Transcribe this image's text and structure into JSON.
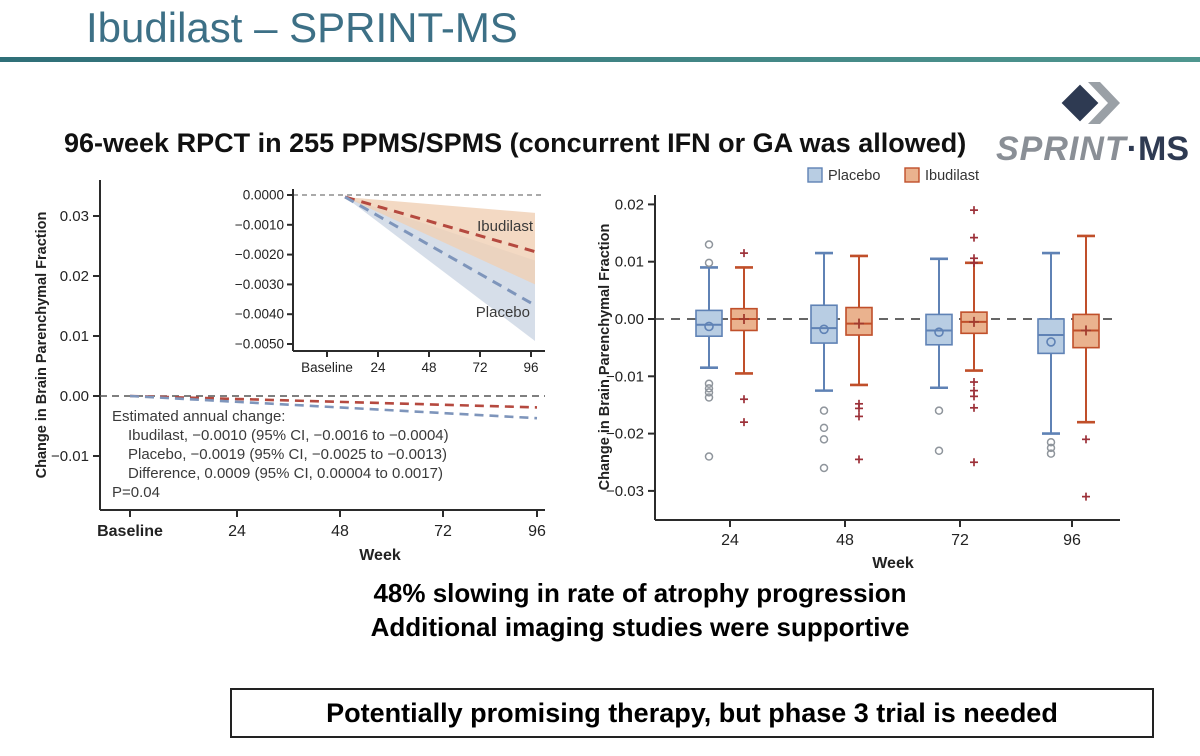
{
  "slide": {
    "title": "Ibudilast – SPRINT-MS",
    "subtitle": "96-week RPCT in 255 PPMS/SPMS (concurrent IFN or GA was allowed)",
    "finding_line1": "48% slowing in rate of atrophy progression",
    "finding_line2": "Additional imaging studies were supportive",
    "conclusion": "Potentially promising therapy, but phase 3 trial is needed",
    "accent_color": "#3d7086"
  },
  "logo": {
    "sprint": "SPRINT",
    "dot": "·",
    "ms": "MS",
    "diamond_color": "#2e3a52",
    "chevron_color": "#9aa0a6"
  },
  "chart_data": [
    {
      "id": "atrophy-trajectory",
      "type": "line",
      "ylabel": "Change in Brain Parenchymal Fraction",
      "xlabel": "Week",
      "x_ticks": [
        "Baseline",
        "24",
        "48",
        "72",
        "96"
      ],
      "y_ticks": [
        {
          "label": "0.03",
          "value": 0.03
        },
        {
          "label": "0.02",
          "value": 0.02
        },
        {
          "label": "0.01",
          "value": 0.01
        },
        {
          "label": "0.00",
          "value": 0.0
        },
        {
          "label": "−0.01",
          "value": -0.01
        }
      ],
      "ylim": [
        -0.019,
        0.035
      ],
      "zero_line": 0,
      "series": [
        {
          "name": "Ibudilast",
          "color": "#b5493f",
          "start_value": 0,
          "end_value": -0.0019
        },
        {
          "name": "Placebo",
          "color": "#7e95bb",
          "start_value": 0,
          "end_value": -0.0037
        }
      ],
      "annotation": {
        "title": "Estimated annual change:",
        "lines": [
          "Ibudilast, −0.0010 (95% CI, −0.0016 to −0.0004)",
          "Placebo, −0.0019 (95% CI, −0.0025 to −0.0013)",
          "Difference, 0.0009 (95% CI, 0.00004 to 0.0017)"
        ],
        "pvalue": "P=0.04"
      },
      "inset": {
        "x_ticks": [
          "Baseline",
          "24",
          "48",
          "72",
          "96"
        ],
        "y_ticks": [
          {
            "label": "0.0000",
            "value": 0.0
          },
          {
            "label": "−0.0010",
            "value": -0.001
          },
          {
            "label": "−0.0020",
            "value": -0.002
          },
          {
            "label": "−0.0030",
            "value": -0.003
          },
          {
            "label": "−0.0040",
            "value": -0.004
          },
          {
            "label": "−0.0050",
            "value": -0.005
          }
        ],
        "series": [
          {
            "name": "Ibudilast",
            "color": "#b5493f",
            "band_color": "#f0cfb4",
            "end_value": -0.0019,
            "band_end": [
              -0.0006,
              -0.003
            ]
          },
          {
            "name": "Placebo",
            "color": "#7e95bb",
            "band_color": "#ccd6e4",
            "end_value": -0.0037,
            "band_end": [
              -0.0022,
              -0.0049
            ]
          }
        ]
      }
    },
    {
      "id": "atrophy-boxplot",
      "type": "boxplot",
      "ylabel": "Change in Brain Parenchymal Fraction",
      "xlabel": "Week",
      "categories": [
        "24",
        "48",
        "72",
        "96"
      ],
      "y_ticks": [
        {
          "label": "0.02",
          "value": 0.02
        },
        {
          "label": "0.01",
          "value": 0.01
        },
        {
          "label": "0.00",
          "value": 0.0
        },
        {
          "label": "−0.01",
          "value": -0.01
        },
        {
          "label": "−0.02",
          "value": -0.02
        },
        {
          "label": "−0.03",
          "value": -0.03
        }
      ],
      "ylim": [
        -0.0345,
        0.0215
      ],
      "zero_line": 0,
      "groups": [
        {
          "name": "Placebo",
          "fill": "#b8cde3",
          "stroke": "#5f82b5",
          "outlier_marker": "circle",
          "outlier_color": "#8f959c",
          "boxes": [
            {
              "week": "24",
              "lo": -0.0085,
              "q1": -0.003,
              "med": -0.001,
              "mean": -0.0013,
              "q3": 0.0015,
              "hi": 0.009,
              "out_hi": [
                0.013,
                0.0098
              ],
              "out_lo": [
                -0.0113,
                -0.0121,
                -0.0128,
                -0.0137,
                -0.024
              ]
            },
            {
              "week": "48",
              "lo": -0.0125,
              "q1": -0.0042,
              "med": -0.0016,
              "mean": -0.0018,
              "q3": 0.0024,
              "hi": 0.0115,
              "out_hi": [],
              "out_lo": [
                -0.016,
                -0.019,
                -0.021,
                -0.026
              ]
            },
            {
              "week": "72",
              "lo": -0.012,
              "q1": -0.0045,
              "med": -0.002,
              "mean": -0.0023,
              "q3": 0.0008,
              "hi": 0.0105,
              "out_hi": [],
              "out_lo": [
                -0.016,
                -0.023
              ]
            },
            {
              "week": "96",
              "lo": -0.02,
              "q1": -0.006,
              "med": -0.0028,
              "mean": -0.004,
              "q3": 0.0,
              "hi": 0.0115,
              "out_hi": [],
              "out_lo": [
                -0.0215,
                -0.0225,
                -0.0235
              ]
            }
          ]
        },
        {
          "name": "Ibudilast",
          "fill": "#eab28e",
          "stroke": "#c04f2a",
          "outlier_marker": "plus",
          "outlier_color": "#9c3038",
          "boxes": [
            {
              "week": "24",
              "lo": -0.0095,
              "q1": -0.002,
              "med": 0.0,
              "mean": 0.0,
              "q3": 0.0018,
              "hi": 0.009,
              "out_hi": [
                0.0115
              ],
              "out_lo": [
                -0.014,
                -0.018
              ]
            },
            {
              "week": "48",
              "lo": -0.0115,
              "q1": -0.0028,
              "med": -0.0008,
              "mean": -0.0008,
              "q3": 0.002,
              "hi": 0.011,
              "out_hi": [],
              "out_lo": [
                -0.0148,
                -0.0156,
                -0.017,
                -0.0245
              ]
            },
            {
              "week": "72",
              "lo": -0.009,
              "q1": -0.0025,
              "med": -0.0005,
              "mean": -0.0005,
              "q3": 0.0012,
              "hi": 0.0098,
              "out_hi": [
                0.019,
                0.0142,
                0.0106,
                0.0098
              ],
              "out_lo": [
                -0.011,
                -0.0125,
                -0.0135,
                -0.0155,
                -0.025
              ]
            },
            {
              "week": "96",
              "lo": -0.018,
              "q1": -0.005,
              "med": -0.002,
              "mean": -0.002,
              "q3": 0.0008,
              "hi": 0.0145,
              "out_hi": [],
              "out_lo": [
                -0.021,
                -0.031
              ]
            }
          ]
        }
      ]
    }
  ]
}
